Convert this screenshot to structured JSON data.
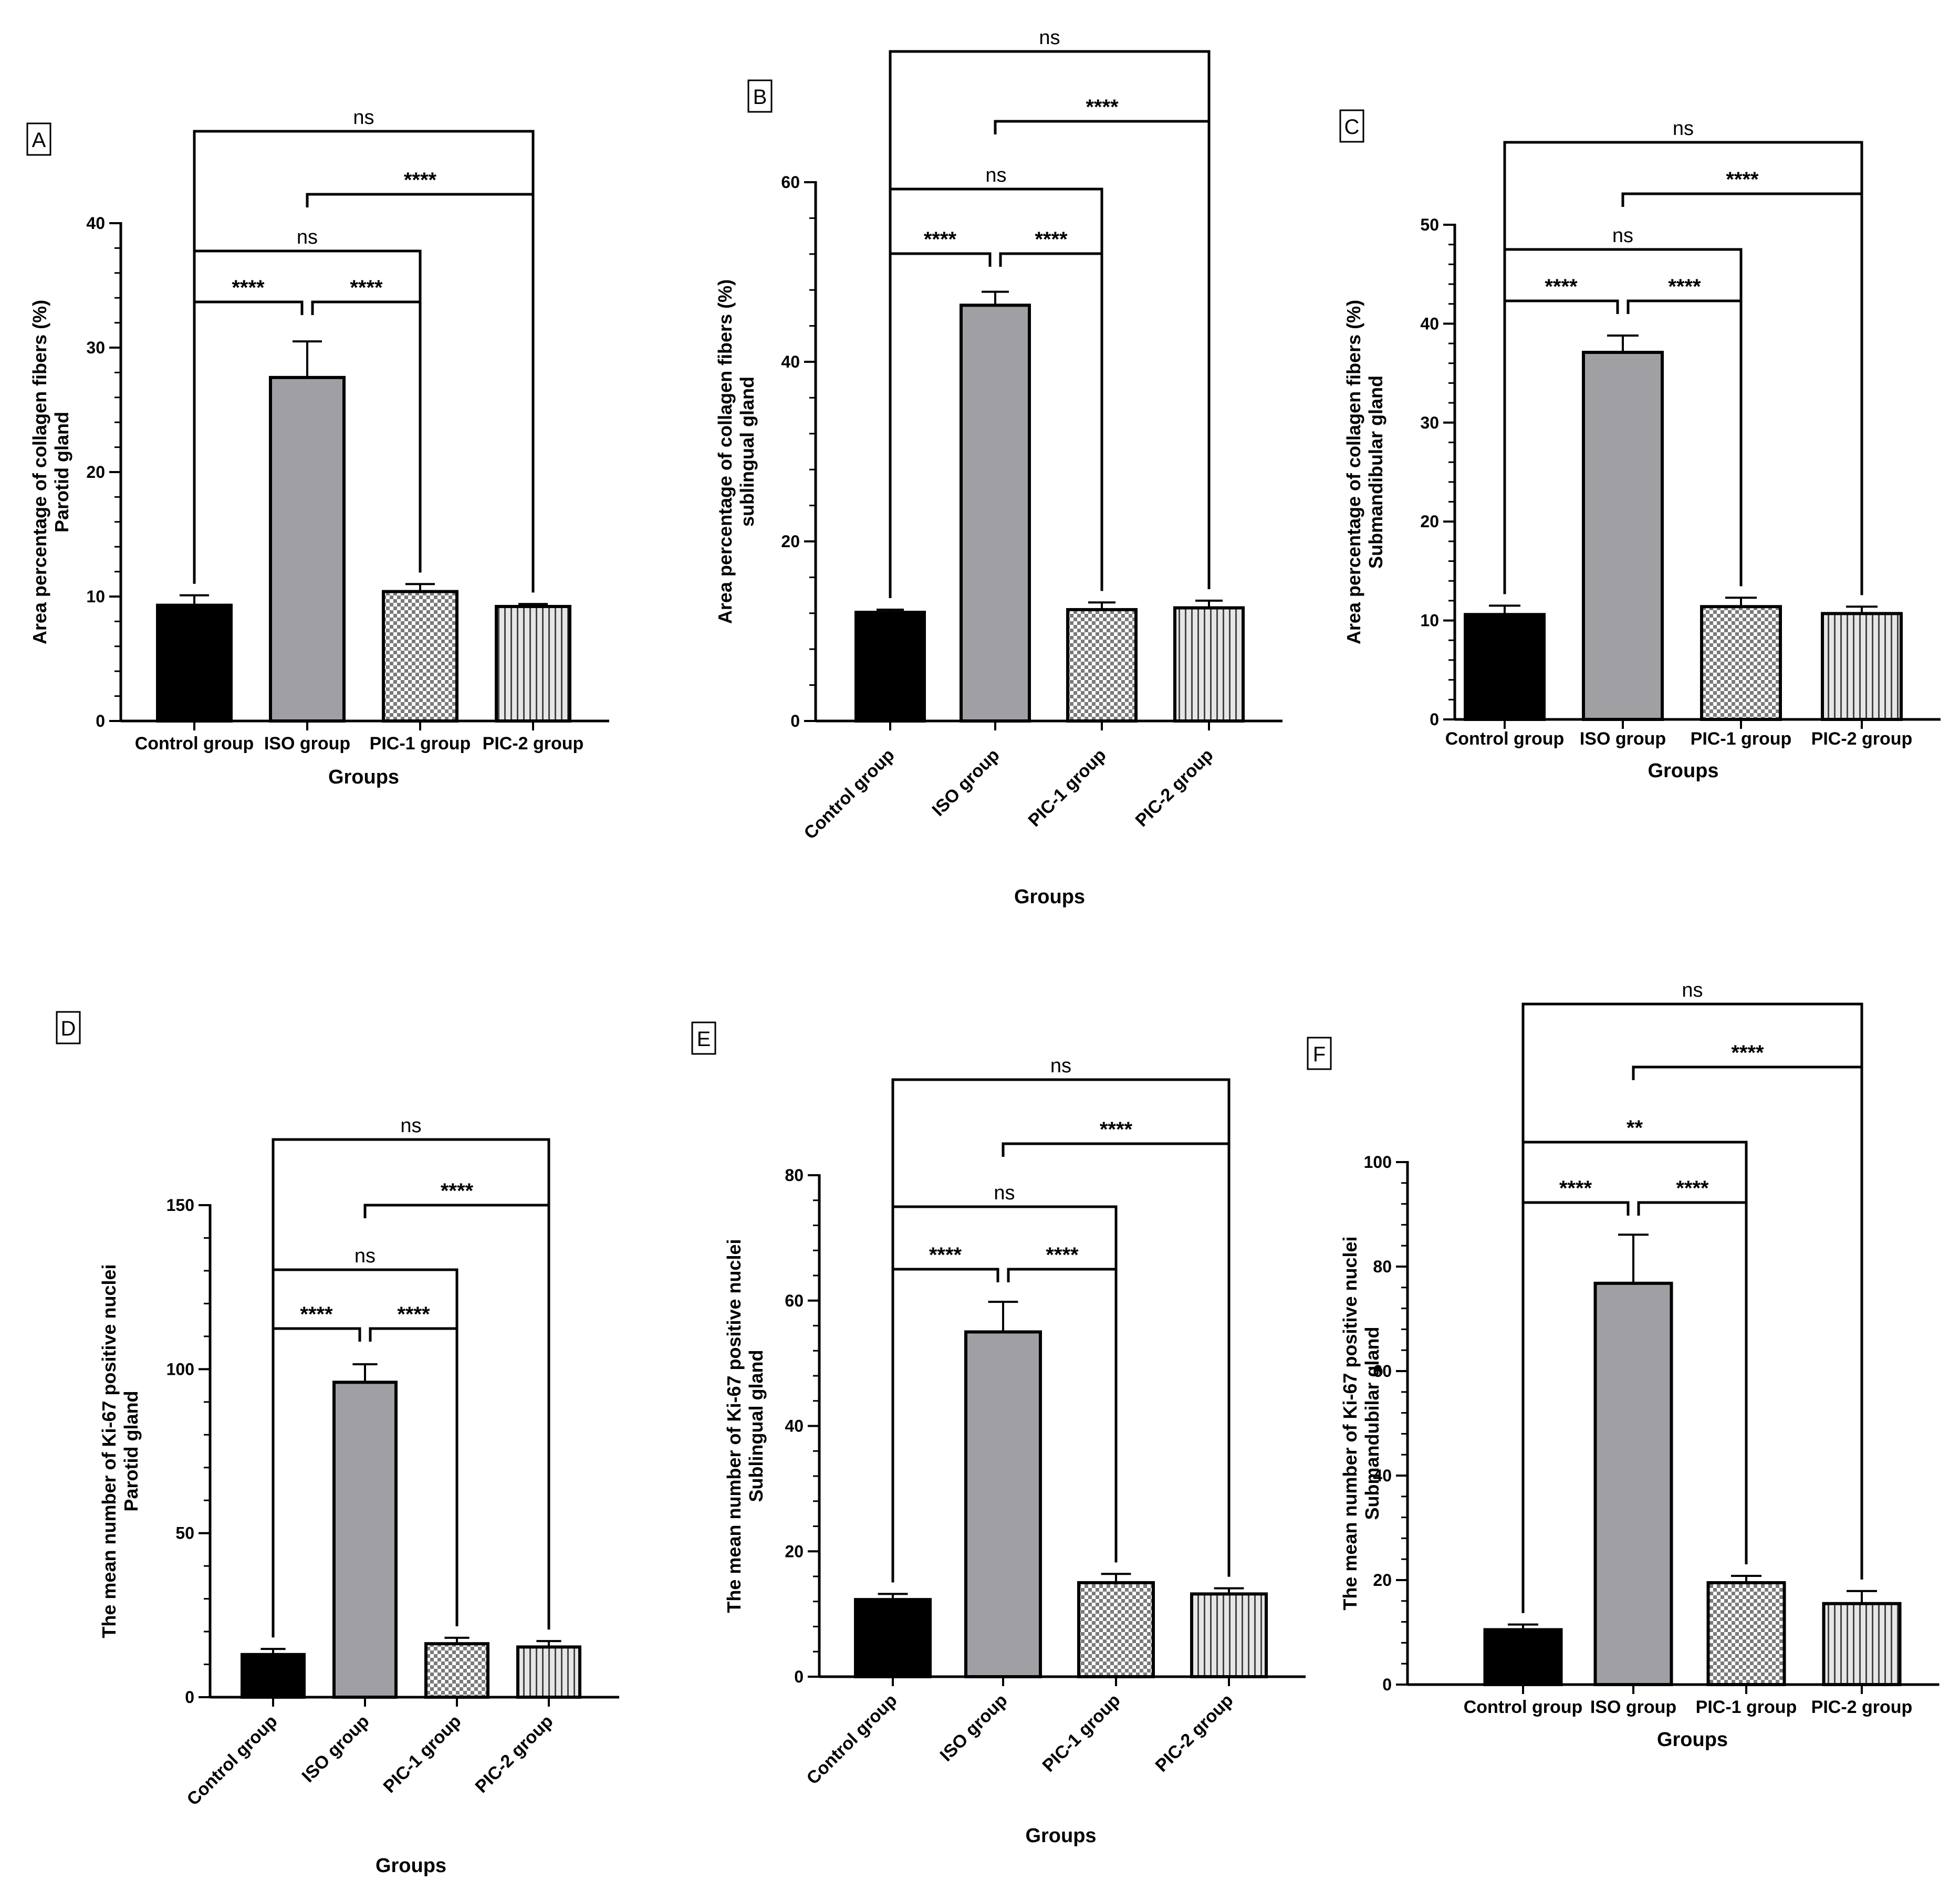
{
  "chart_data": [
    {
      "panel": "A",
      "type": "bar",
      "categories": [
        "Control group",
        "ISO group",
        "PIC-1 group",
        "PIC-2 group"
      ],
      "values": [
        9.3,
        27.6,
        10.4,
        9.2
      ],
      "errors": [
        0.8,
        2.9,
        0.6,
        0.2
      ],
      "ylabel": [
        "Area percentage of collagen fibers (%)",
        "Parotid gland"
      ],
      "xlabel": "Groups",
      "ylim": [
        0,
        40
      ],
      "yticks": [
        0,
        10,
        20,
        30,
        40
      ],
      "grid": false,
      "comparisons": [
        {
          "from": 0,
          "to": 1,
          "label": "****"
        },
        {
          "from": 1,
          "to": 2,
          "label": "****"
        },
        {
          "from": 0,
          "to": 2,
          "label": "ns"
        },
        {
          "from": 1,
          "to": 3,
          "label": "****"
        },
        {
          "from": 0,
          "to": 3,
          "label": "ns"
        }
      ]
    },
    {
      "panel": "B",
      "type": "bar",
      "categories": [
        "Control group",
        "ISO group",
        "PIC-1 group",
        "PIC-2 group"
      ],
      "values": [
        12.1,
        46.3,
        12.4,
        12.6
      ],
      "errors": [
        0.3,
        1.5,
        0.8,
        0.8
      ],
      "ylabel": [
        "Area percentage of collagen fibers (%)",
        "sublingual gland"
      ],
      "xlabel": "Groups",
      "ylim": [
        0,
        60
      ],
      "yticks": [
        0,
        20,
        40,
        60
      ],
      "grid": false,
      "comparisons": [
        {
          "from": 0,
          "to": 1,
          "label": "****"
        },
        {
          "from": 1,
          "to": 2,
          "label": "****"
        },
        {
          "from": 0,
          "to": 2,
          "label": "ns"
        },
        {
          "from": 1,
          "to": 3,
          "label": "****"
        },
        {
          "from": 0,
          "to": 3,
          "label": "ns"
        }
      ]
    },
    {
      "panel": "C",
      "type": "bar",
      "categories": [
        "Control group",
        "ISO group",
        "PIC-1 group",
        "PIC-2 group"
      ],
      "values": [
        10.6,
        37.1,
        11.4,
        10.7
      ],
      "errors": [
        0.9,
        1.7,
        0.9,
        0.7
      ],
      "ylabel": [
        "Area percentage of collagen fibers (%)",
        "Submandibular gland"
      ],
      "xlabel": "Groups",
      "ylim": [
        0,
        50
      ],
      "yticks": [
        0,
        10,
        20,
        30,
        40,
        50
      ],
      "grid": false,
      "comparisons": [
        {
          "from": 0,
          "to": 1,
          "label": "****"
        },
        {
          "from": 1,
          "to": 2,
          "label": "****"
        },
        {
          "from": 0,
          "to": 2,
          "label": "ns"
        },
        {
          "from": 1,
          "to": 3,
          "label": "****"
        },
        {
          "from": 0,
          "to": 3,
          "label": "ns"
        }
      ]
    },
    {
      "panel": "D",
      "type": "bar",
      "categories": [
        "Control group",
        "ISO group",
        "PIC-1 group",
        "PIC-2 group"
      ],
      "values": [
        13,
        96,
        16.3,
        15.3
      ],
      "errors": [
        1.7,
        5.5,
        1.8,
        1.8
      ],
      "ylabel": [
        "The mean number of Ki-67 positive nuclei",
        "Parotid gland"
      ],
      "xlabel": "Groups",
      "ylim": [
        0,
        150
      ],
      "yticks": [
        0,
        50,
        100,
        150
      ],
      "grid": false,
      "comparisons": [
        {
          "from": 0,
          "to": 1,
          "label": "****"
        },
        {
          "from": 1,
          "to": 2,
          "label": "****"
        },
        {
          "from": 0,
          "to": 2,
          "label": "ns"
        },
        {
          "from": 1,
          "to": 3,
          "label": "****"
        },
        {
          "from": 0,
          "to": 3,
          "label": "ns"
        }
      ]
    },
    {
      "panel": "E",
      "type": "bar",
      "categories": [
        "Control group",
        "ISO group",
        "PIC-1 group",
        "PIC-2 group"
      ],
      "values": [
        12.3,
        55,
        15,
        13.2
      ],
      "errors": [
        0.9,
        4.8,
        1.4,
        0.9
      ],
      "ylabel": [
        "The mean number of Ki-67 positive nuclei",
        "Sublingual gland"
      ],
      "xlabel": "Groups",
      "ylim": [
        0,
        80
      ],
      "yticks": [
        0,
        20,
        40,
        60,
        80
      ],
      "grid": false,
      "comparisons": [
        {
          "from": 0,
          "to": 1,
          "label": "****"
        },
        {
          "from": 1,
          "to": 2,
          "label": "****"
        },
        {
          "from": 0,
          "to": 2,
          "label": "ns"
        },
        {
          "from": 1,
          "to": 3,
          "label": "****"
        },
        {
          "from": 0,
          "to": 3,
          "label": "ns"
        }
      ]
    },
    {
      "panel": "F",
      "type": "bar",
      "categories": [
        "Control group",
        "ISO group",
        "PIC-1 group",
        "PIC-2 group"
      ],
      "values": [
        10.5,
        76.8,
        19.5,
        15.5
      ],
      "errors": [
        1.0,
        9.3,
        1.3,
        2.4
      ],
      "ylabel": [
        "The mean number of Ki-67 positive nuclei",
        "Submandubilar gland"
      ],
      "xlabel": "Groups",
      "ylim": [
        0,
        100
      ],
      "yticks": [
        0,
        20,
        40,
        60,
        80,
        100
      ],
      "grid": false,
      "comparisons": [
        {
          "from": 0,
          "to": 1,
          "label": "****"
        },
        {
          "from": 1,
          "to": 2,
          "label": "****"
        },
        {
          "from": 0,
          "to": 2,
          "label": "**"
        },
        {
          "from": 1,
          "to": 3,
          "label": "****"
        },
        {
          "from": 0,
          "to": 3,
          "label": "ns"
        }
      ]
    }
  ],
  "colors": {
    "control": "#000000",
    "iso": "#a0a0a4",
    "pic1_light": "#ffffff",
    "pic1_dark": "#7a7a7a",
    "pic2_light": "#e6e6e6",
    "pic2_dark": "#444444",
    "outline": "#000000"
  }
}
